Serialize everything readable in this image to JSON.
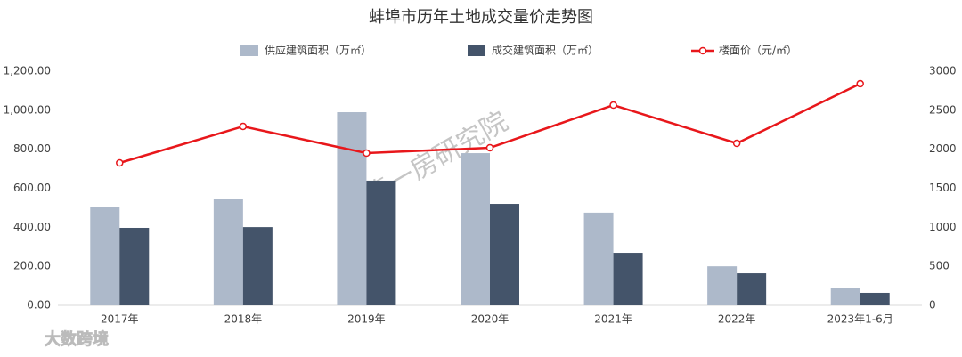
{
  "chart_data": {
    "type": "bar",
    "title": "蚌埠市历年土地成交量价走势图",
    "categories": [
      "2017年",
      "2018年",
      "2019年",
      "2020年",
      "2021年",
      "2022年",
      "2023年1-6月"
    ],
    "series": [
      {
        "name": "供应建筑面积（万㎡）",
        "color": "#adb9ca",
        "values": [
          505,
          543,
          990,
          780,
          475,
          200,
          87
        ]
      },
      {
        "name": "成交建筑面积（万㎡）",
        "color": "#44546a",
        "values": [
          397,
          401,
          639,
          520,
          269,
          164,
          64
        ]
      },
      {
        "name": "楼面价（元/㎡）",
        "color": "#e8171b",
        "type": "line",
        "axis": "y2",
        "values": [
          1825,
          2293,
          1950,
          2019,
          2566,
          2076,
          2840
        ]
      }
    ],
    "ylim": [
      0,
      1200
    ],
    "yticks": [
      {
        "value": 0,
        "label": "0.00"
      },
      {
        "value": 200,
        "label": "200.00"
      },
      {
        "value": 400,
        "label": "400.00"
      },
      {
        "value": 600,
        "label": "600.00"
      },
      {
        "value": 800,
        "label": "800.00"
      },
      {
        "value": 1000,
        "label": "1,000.00"
      },
      {
        "value": 1200,
        "label": "1,200.00"
      }
    ],
    "y2lim": [
      0,
      3000
    ],
    "y2ticks": [
      0,
      500,
      1000,
      1500,
      2000,
      2500,
      3000
    ],
    "grid": false,
    "legend": "top",
    "watermarks": [
      "第一房研究院",
      "大数跨境"
    ]
  }
}
